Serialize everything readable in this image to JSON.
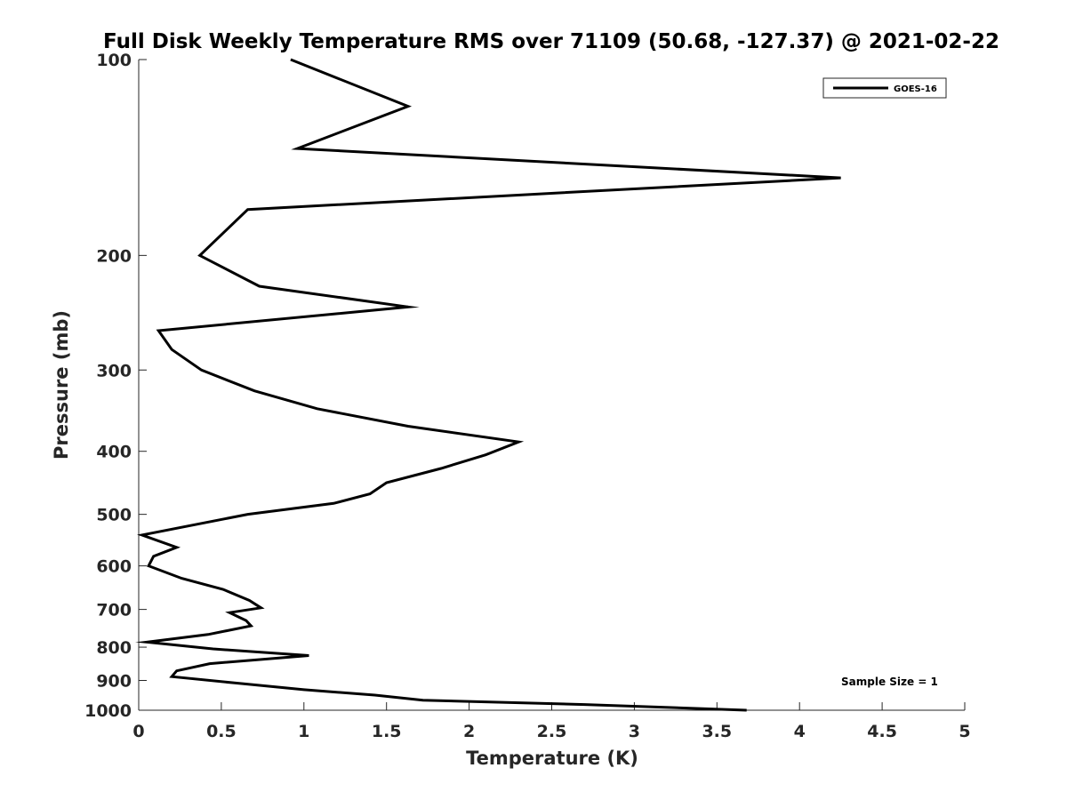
{
  "chart_data": {
    "type": "line",
    "title": "Full Disk Weekly Temperature RMS over 71109 (50.68, -127.37) @ 2021-02-22",
    "xlabel": "Temperature (K)",
    "ylabel": "Pressure (mb)",
    "xlim": [
      0,
      5
    ],
    "ylim": [
      100,
      1000
    ],
    "y_scale": "log",
    "y_reversed": true,
    "grid": false,
    "legend_position": "top-right",
    "x_ticks": [
      0,
      0.5,
      1,
      1.5,
      2,
      2.5,
      3,
      3.5,
      4,
      4.5,
      5
    ],
    "x_tick_labels": [
      "0",
      "0.5",
      "1",
      "1.5",
      "2",
      "2.5",
      "3",
      "3.5",
      "4",
      "4.5",
      "5"
    ],
    "y_ticks": [
      100,
      200,
      300,
      400,
      500,
      600,
      700,
      800,
      900,
      1000
    ],
    "y_tick_labels": [
      "100",
      "200",
      "300",
      "400",
      "500",
      "600",
      "700",
      "800",
      "900",
      "1000"
    ],
    "series": [
      {
        "name": "GOES-16",
        "color": "#000000",
        "points": [
          [
            0.92,
            100
          ],
          [
            1.63,
            118
          ],
          [
            0.96,
            137
          ],
          [
            4.25,
            152
          ],
          [
            0.66,
            170
          ],
          [
            0.37,
            200
          ],
          [
            0.73,
            223
          ],
          [
            1.63,
            240
          ],
          [
            0.12,
            261
          ],
          [
            0.2,
            279
          ],
          [
            0.38,
            300
          ],
          [
            0.7,
            323
          ],
          [
            1.08,
            344
          ],
          [
            1.63,
            366
          ],
          [
            2.3,
            387
          ],
          [
            2.1,
            405
          ],
          [
            1.83,
            425
          ],
          [
            1.5,
            447
          ],
          [
            1.4,
            465
          ],
          [
            1.18,
            481
          ],
          [
            0.66,
            500
          ],
          [
            0.02,
            538
          ],
          [
            0.23,
            562
          ],
          [
            0.09,
            580
          ],
          [
            0.06,
            600
          ],
          [
            0.26,
            627
          ],
          [
            0.51,
            652
          ],
          [
            0.67,
            678
          ],
          [
            0.74,
            696
          ],
          [
            0.55,
            708
          ],
          [
            0.65,
            728
          ],
          [
            0.68,
            742
          ],
          [
            0.42,
            765
          ],
          [
            0.05,
            786
          ],
          [
            0.45,
            805
          ],
          [
            1.03,
            824
          ],
          [
            0.43,
            848
          ],
          [
            0.23,
            870
          ],
          [
            0.2,
            888
          ],
          [
            0.58,
            908
          ],
          [
            1.0,
            930
          ],
          [
            1.43,
            948
          ],
          [
            1.72,
            965
          ],
          [
            2.7,
            980
          ],
          [
            3.68,
            1000
          ]
        ]
      }
    ],
    "annotations": [
      "Sample Size = 1"
    ]
  }
}
